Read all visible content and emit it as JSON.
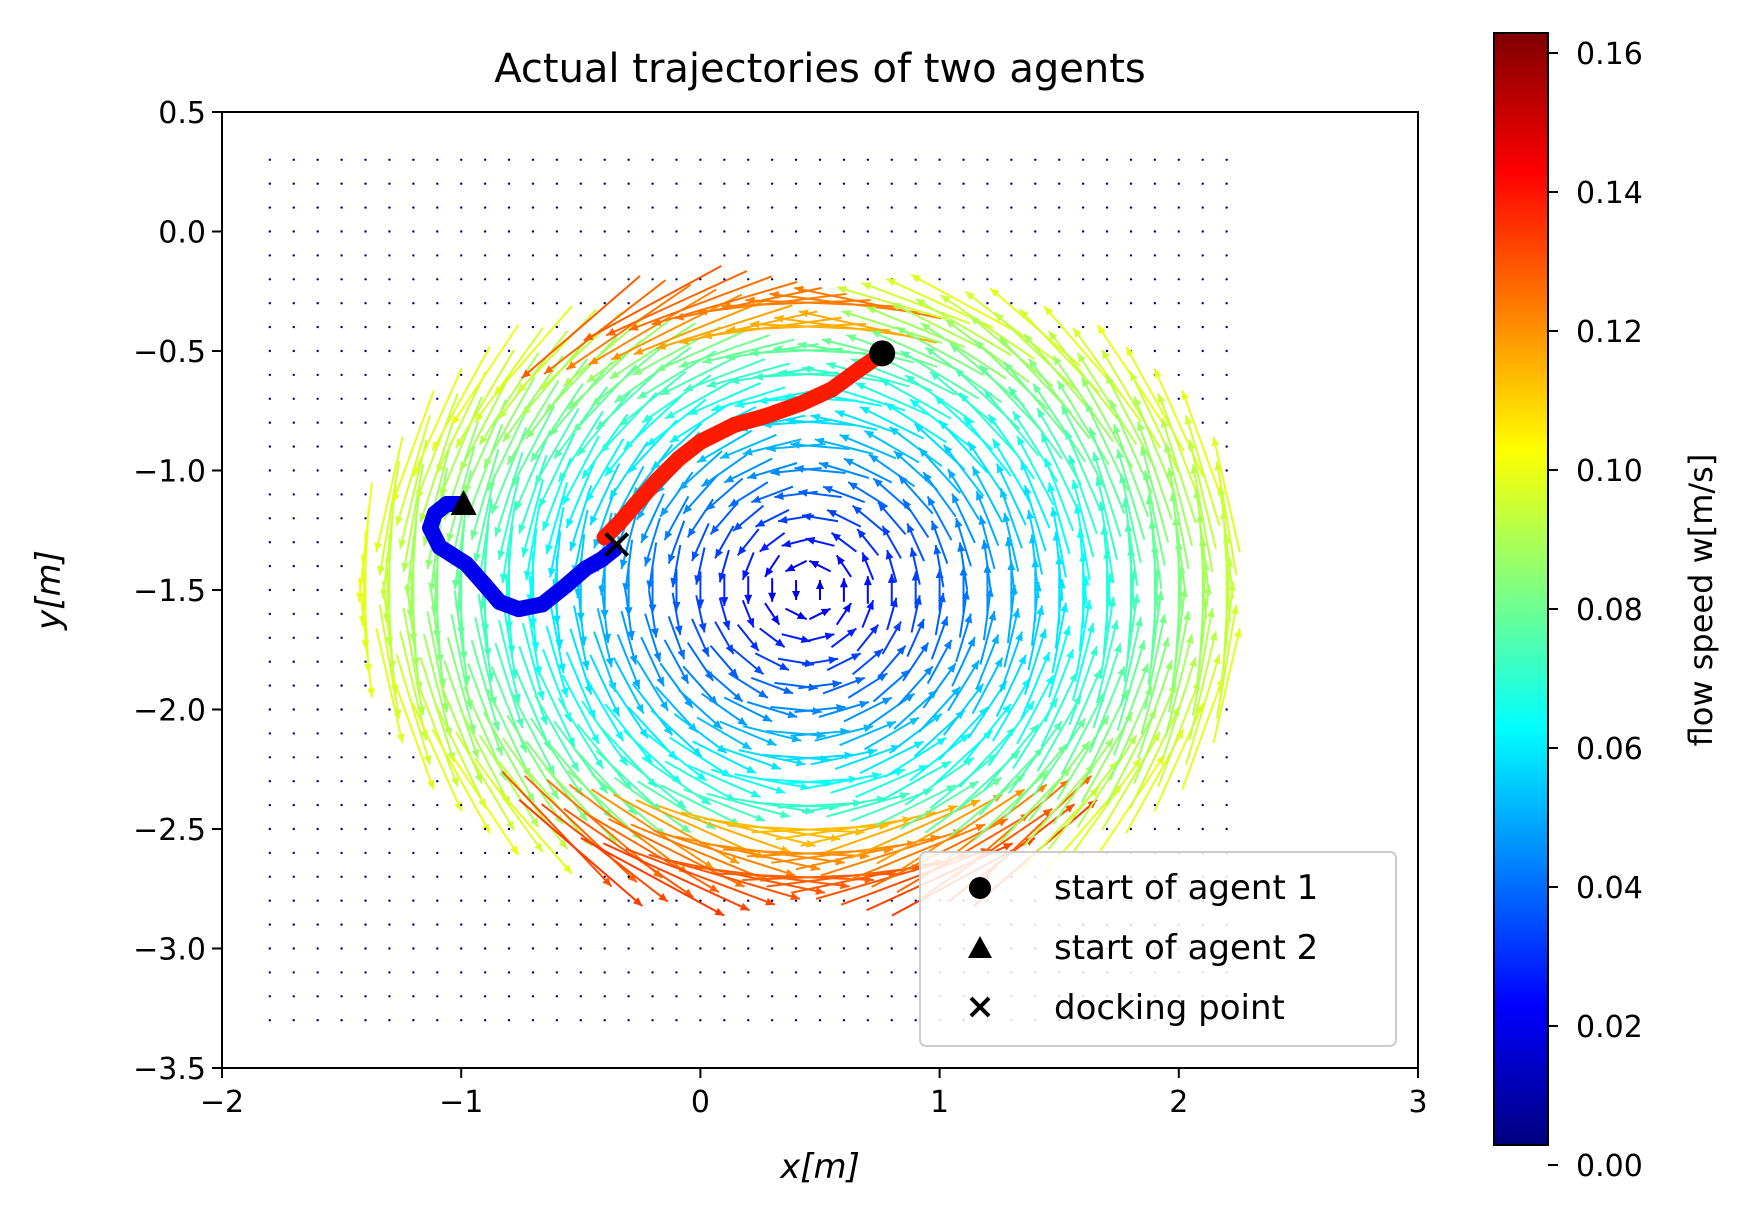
{
  "chart_data": {
    "type": "quiver",
    "title": "Actual trajectories of two agents",
    "xlabel": "x[m]",
    "ylabel": "y[m]",
    "xlim": [
      -2,
      3
    ],
    "ylim": [
      -3.5,
      0.5
    ],
    "xticks": [
      -2,
      -1,
      0,
      1,
      2,
      3
    ],
    "yticks": [
      0.5,
      0.0,
      -0.5,
      -1.0,
      -1.5,
      -2.0,
      -2.5,
      -3.0,
      -3.5
    ],
    "xtick_labels": [
      "−2",
      "−1",
      "0",
      "1",
      "2",
      "3"
    ],
    "ytick_labels": [
      "0.5",
      "0.0",
      "−0.5",
      "−1.0",
      "−1.5",
      "−2.0",
      "−2.5",
      "−3.0",
      "−3.5"
    ],
    "colorbar": {
      "label": "flow speed w[m/s]",
      "colormap": "jet",
      "range": [
        0.0,
        0.16
      ],
      "ticks": [
        "0.00",
        "0.02",
        "0.04",
        "0.06",
        "0.08",
        "0.10",
        "0.12",
        "0.14",
        "0.16"
      ]
    },
    "flow_field": {
      "grid_x_range": [
        -1.8,
        2.2
      ],
      "grid_y_range": [
        -3.3,
        0.3
      ],
      "grid_step": 0.1,
      "vortex_center": [
        0.45,
        -1.5
      ],
      "speed_range": [
        0.0,
        0.16
      ]
    },
    "trajectories": [
      {
        "name": "agent 1",
        "color": "#ff1a00",
        "points": [
          [
            0.76,
            -0.51
          ],
          [
            0.66,
            -0.58
          ],
          [
            0.55,
            -0.66
          ],
          [
            0.42,
            -0.72
          ],
          [
            0.28,
            -0.77
          ],
          [
            0.14,
            -0.81
          ],
          [
            0.0,
            -0.88
          ],
          [
            -0.09,
            -0.95
          ],
          [
            -0.18,
            -1.04
          ],
          [
            -0.27,
            -1.14
          ],
          [
            -0.34,
            -1.22
          ],
          [
            -0.4,
            -1.28
          ]
        ]
      },
      {
        "name": "agent 2",
        "color": "#0000ee",
        "points": [
          [
            -1.0,
            -1.14
          ],
          [
            -1.06,
            -1.14
          ],
          [
            -1.11,
            -1.18
          ],
          [
            -1.13,
            -1.24
          ],
          [
            -1.09,
            -1.32
          ],
          [
            -0.98,
            -1.39
          ],
          [
            -0.9,
            -1.48
          ],
          [
            -0.84,
            -1.55
          ],
          [
            -0.76,
            -1.58
          ],
          [
            -0.66,
            -1.56
          ],
          [
            -0.56,
            -1.48
          ],
          [
            -0.48,
            -1.41
          ],
          [
            -0.41,
            -1.37
          ],
          [
            -0.36,
            -1.33
          ]
        ]
      }
    ],
    "markers": [
      {
        "label": "start of agent 1",
        "shape": "circle",
        "x": 0.76,
        "y": -0.51
      },
      {
        "label": "start of agent 2",
        "shape": "triangle",
        "x": -0.99,
        "y": -1.14
      },
      {
        "label": "docking point",
        "shape": "x",
        "x": -0.35,
        "y": -1.31
      }
    ],
    "legend": {
      "placement": "lower right",
      "entries": [
        "start of agent 1",
        "start of agent 2",
        "docking point"
      ]
    }
  }
}
